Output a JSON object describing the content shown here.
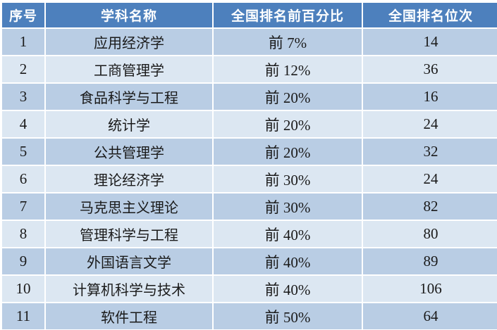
{
  "table": {
    "headers": {
      "no": "序号",
      "subject": "学科名称",
      "percentile": "全国排名前百分比",
      "rank": "全国排名位次"
    },
    "rows": [
      {
        "no": "1",
        "subject": "应用经济学",
        "percentile": "前 7%",
        "rank": "14"
      },
      {
        "no": "2",
        "subject": "工商管理学",
        "percentile": "前 12%",
        "rank": "36"
      },
      {
        "no": "3",
        "subject": "食品科学与工程",
        "percentile": "前 20%",
        "rank": "16"
      },
      {
        "no": "4",
        "subject": "统计学",
        "percentile": "前 20%",
        "rank": "24"
      },
      {
        "no": "5",
        "subject": "公共管理学",
        "percentile": "前 20%",
        "rank": "32"
      },
      {
        "no": "6",
        "subject": "理论经济学",
        "percentile": "前 30%",
        "rank": "24"
      },
      {
        "no": "7",
        "subject": "马克思主义理论",
        "percentile": "前 30%",
        "rank": "82"
      },
      {
        "no": "8",
        "subject": "管理科学与工程",
        "percentile": "前 40%",
        "rank": "80"
      },
      {
        "no": "9",
        "subject": "外国语言文学",
        "percentile": "前 40%",
        "rank": "89"
      },
      {
        "no": "10",
        "subject": "计算机科学与技术",
        "percentile": "前 40%",
        "rank": "106"
      },
      {
        "no": "11",
        "subject": "软件工程",
        "percentile": "前 50%",
        "rank": "64"
      }
    ]
  },
  "colors": {
    "header_bg": "#4d80bd",
    "header_text": "#ffffff",
    "row_odd_bg": "#b9cde4",
    "row_even_bg": "#dce7f2",
    "body_text": "#1a1a1a",
    "grid_gap": "#ffffff"
  }
}
